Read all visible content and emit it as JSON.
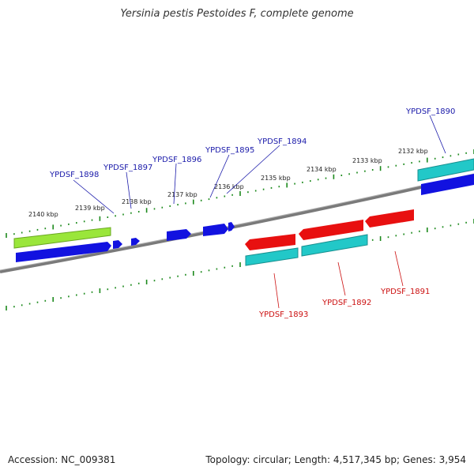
{
  "title": "Yersinia pestis Pestoides F, complete genome",
  "footer": {
    "accession": "Accession: NC_009381",
    "stats": "Topology: circular; Length: 4,517,345 bp; Genes: 3,954"
  },
  "colors": {
    "backbone": "#7a7a7a",
    "ticks": "#1d8a1d",
    "forward_label": "#1a1aaa",
    "reverse_label": "#cc1111",
    "blue": "#1212e0",
    "red": "#e81010",
    "cyan": "#22c8c8",
    "green": "#9ae63a"
  },
  "axis": {
    "upper_kbp_labels": [
      {
        "text": "2140 kbp",
        "kbp": 2140
      },
      {
        "text": "2139 kbp",
        "kbp": 2139
      },
      {
        "text": "2138 kbp",
        "kbp": 2138
      },
      {
        "text": "2137 kbp",
        "kbp": 2137
      },
      {
        "text": "2136 kbp",
        "kbp": 2136
      },
      {
        "text": "2135 kbp",
        "kbp": 2135
      },
      {
        "text": "2134 kbp",
        "kbp": 2134
      },
      {
        "text": "2133 kbp",
        "kbp": 2133
      },
      {
        "text": "2132 kbp",
        "kbp": 2132
      }
    ]
  },
  "forward_genes": [
    {
      "name": "YPDSF_1898"
    },
    {
      "name": "YPDSF_1897"
    },
    {
      "name": "YPDSF_1896"
    },
    {
      "name": "YPDSF_1895"
    },
    {
      "name": "YPDSF_1894"
    },
    {
      "name": "YPDSF_1890"
    }
  ],
  "reverse_genes": [
    {
      "name": "YPDSF_1893"
    },
    {
      "name": "YPDSF_1892"
    },
    {
      "name": "YPDSF_1891"
    }
  ]
}
